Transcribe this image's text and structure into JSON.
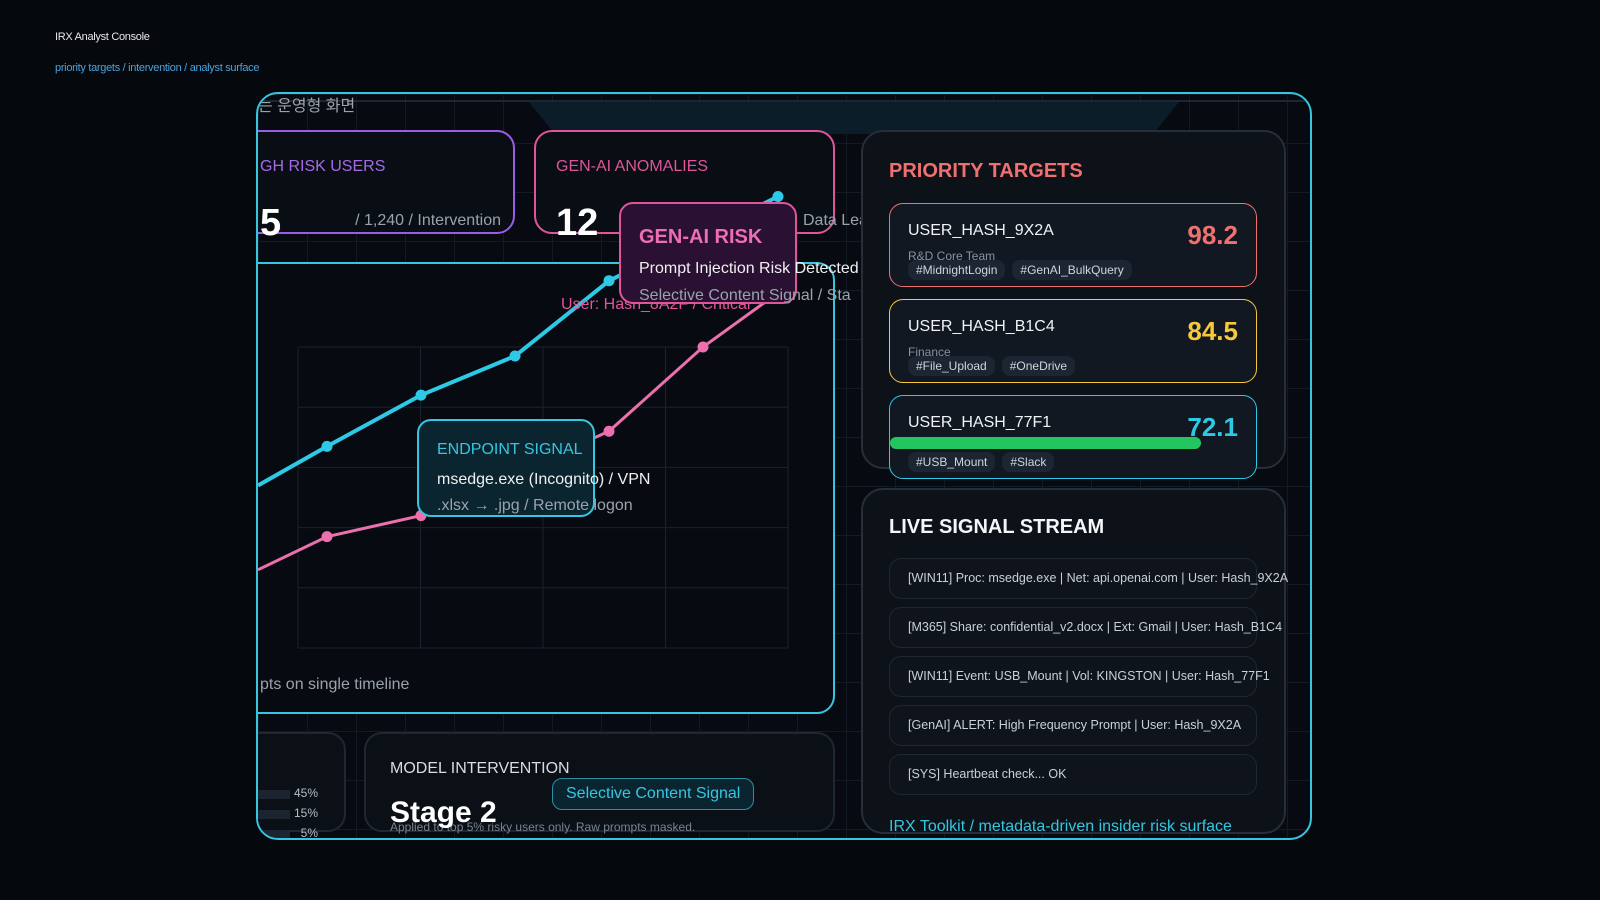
{
  "header": {
    "title": "IRX Analyst Console",
    "breadcrumb": "priority targets / intervention / analyst surface"
  },
  "banner_text_fragment": "는 운영형 화면",
  "kpis": [
    {
      "title": "GH RISK USERS",
      "value": "5",
      "detail": "/ 1,240 / Intervention",
      "color": "#9b5de5"
    },
    {
      "title": "GEN-AI ANOMALIES",
      "value": "12",
      "detail": "Data Lea",
      "color": "#e0559a"
    }
  ],
  "chart_data": {
    "type": "line",
    "title": "",
    "xlabel": "",
    "ylabel": "",
    "x": [
      0,
      1,
      2,
      3,
      4,
      5,
      6
    ],
    "series": [
      {
        "color": "#2ec9e6",
        "values": [
          54,
          67,
          84,
          97,
          122,
          null,
          150
        ]
      },
      {
        "color": "#ec6fae",
        "values": [
          26,
          37,
          44,
          null,
          72,
          100,
          118
        ]
      }
    ],
    "grid": true,
    "caption_fragment": "pts on single timeline",
    "annotation": "User: Hash_8A2F / Critical"
  },
  "genai_tip": {
    "title": "GEN-AI RISK",
    "line1": "Prompt Injection Risk Detected",
    "line2": "Selective Content Signal / Sta"
  },
  "endpoint_tip": {
    "title": "ENDPOINT SIGNAL",
    "line1": "msedge.exe (Incognito) / VPN",
    "line2": ".xlsx → .jpg / Remote logon"
  },
  "distribution": {
    "items": [
      {
        "label": "45%",
        "value": 45
      },
      {
        "label": "15%",
        "value": 15
      },
      {
        "label": "5%",
        "value": 5
      }
    ]
  },
  "intervention": {
    "title": "MODEL INTERVENTION",
    "stage": "Stage 2",
    "badge": "Selective Content Signal",
    "note": "Applied to top 5% risky users only. Raw prompts masked."
  },
  "priority": {
    "title": "PRIORITY TARGETS",
    "targets": [
      {
        "name": "USER_HASH_9X2A",
        "dept": "R&D Core Team",
        "score": "98.2",
        "color": "#f07070",
        "tags": [
          "#MidnightLogin",
          "#GenAI_BulkQuery"
        ]
      },
      {
        "name": "USER_HASH_B1C4",
        "dept": "Finance",
        "score": "84.5",
        "color": "#f5c93a",
        "tags": [
          "#File_Upload",
          "#OneDrive"
        ]
      },
      {
        "name": "USER_HASH_77F1",
        "dept": "",
        "score": "72.1",
        "color": "#2ec9e6",
        "tags": [
          "#USB_Mount",
          "#Slack"
        ],
        "bar_fill": 0.85,
        "bar_color": "#22c55e"
      }
    ]
  },
  "stream": {
    "title": "LIVE SIGNAL STREAM",
    "rows": [
      "[WIN11] Proc: msedge.exe | Net: api.openai.com | User: Hash_9X2A",
      "[M365] Share: confidential_v2.docx | Ext: Gmail | User: Hash_B1C4",
      "[WIN11] Event: USB_Mount | Vol: KINGSTON | User: Hash_77F1",
      "[GenAI] ALERT: High Frequency Prompt | User: Hash_9X2A",
      "[SYS] Heartbeat check... OK"
    ],
    "footer": "IRX Toolkit / metadata-driven insider risk surface"
  }
}
